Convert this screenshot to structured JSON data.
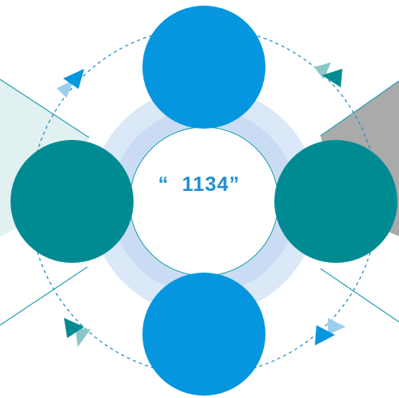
{
  "center_label": "“  1134”",
  "colors": {
    "blue": "#0596df",
    "teal": "#008b93",
    "ring_outer": "#dae8f7",
    "ring_inner": "#c9dcf3",
    "line": "#2a9fb0",
    "dashed": "#2a8fc4",
    "panel_left": "#e1f0f0",
    "panel_right": "#aaaaaa"
  },
  "nodes": [
    {
      "id": "top",
      "color": "blue"
    },
    {
      "id": "left",
      "color": "teal"
    },
    {
      "id": "right",
      "color": "teal"
    },
    {
      "id": "bottom",
      "color": "blue"
    }
  ],
  "arrows": [
    {
      "id": "top-left",
      "color": "blue",
      "direction": "clockwise"
    },
    {
      "id": "top-right",
      "color": "teal",
      "direction": "clockwise"
    },
    {
      "id": "bottom-right",
      "color": "blue",
      "direction": "clockwise"
    },
    {
      "id": "bottom-left",
      "color": "teal",
      "direction": "clockwise"
    }
  ]
}
